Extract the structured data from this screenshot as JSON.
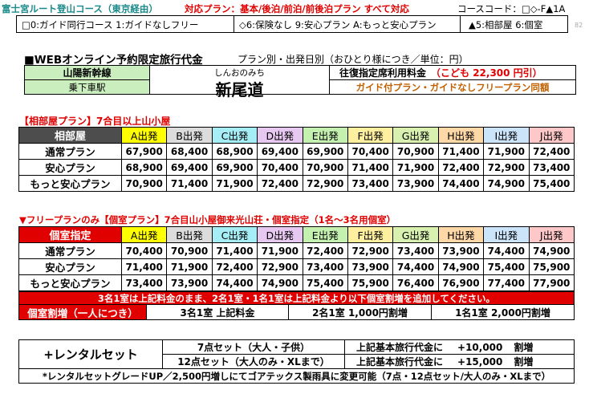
{
  "header": {
    "left_title": "富士宮ルート登山コース（東京経由）",
    "plan_notice": "対応プラン：基本/後泊/前泊/前後泊プラン すべて対応",
    "course_code": "コースコード：□◇-F▲1A",
    "page_num": "82"
  },
  "tags": {
    "guide": "□0:ガイド同行コース 1:ガイドなしフリー",
    "insurance": "◇6:保険なし 9:安心プラン A:もっと安心プラン",
    "room": "▲5:相部屋 6:個室"
  },
  "title": {
    "main": "■WEBオンライン予約限定旅行代金",
    "sub": "プラン別・出発日別（おひとり様につき／単位：円）"
  },
  "station": {
    "line": "山陽新幹線",
    "boarding_label": "乗下車駅",
    "reading": "しんおのみち",
    "name": "新尾道",
    "fare_label": "往復指定席利用料金",
    "fare_child": "（こども 22,300 円引）",
    "note": "ガイド付プラン・ガイドなしフリープラン同額"
  },
  "colors": {
    "A": "#ffff00",
    "B": "#dcdcdc",
    "C": "#a6eef6",
    "D": "#e6c8f0",
    "E": "#c4f0b0",
    "F": "#fff0a0",
    "G": "#d8f0b0",
    "H": "#ffd8a8",
    "I": "#cce4fa",
    "J": "#ffc8c8"
  },
  "dep_keys": [
    "A",
    "B",
    "C",
    "D",
    "E",
    "F",
    "G",
    "H",
    "I",
    "J"
  ],
  "departures": [
    "A出発",
    "B出発",
    "C出発",
    "D出発",
    "E出発",
    "F出発",
    "G出発",
    "H出発",
    "I出発",
    "J出発"
  ],
  "shared": {
    "title": "【相部屋プラン】7合目以上山小屋",
    "head": "相部屋",
    "rows": [
      {
        "label": "通常プラン",
        "values": [
          "67,900",
          "68,400",
          "68,900",
          "69,400",
          "69,900",
          "70,400",
          "70,900",
          "71,400",
          "71,900",
          "72,400"
        ]
      },
      {
        "label": "安心プラン",
        "values": [
          "68,900",
          "69,400",
          "69,900",
          "70,400",
          "70,900",
          "71,400",
          "71,900",
          "72,400",
          "72,900",
          "73,400"
        ]
      },
      {
        "label": "もっと安心プラン",
        "values": [
          "70,900",
          "71,400",
          "71,900",
          "72,400",
          "72,900",
          "73,400",
          "73,900",
          "74,400",
          "74,900",
          "75,400"
        ]
      }
    ]
  },
  "private": {
    "title": "▼フリープランのみ【個室プラン】7合目山小屋御来光山荘・個室指定（1名～3名用個室）",
    "head": "個室指定",
    "rows": [
      {
        "label": "通常プラン",
        "values": [
          "70,400",
          "70,900",
          "71,400",
          "71,900",
          "72,400",
          "72,900",
          "73,400",
          "73,900",
          "74,400",
          "74,900"
        ]
      },
      {
        "label": "安心プラン",
        "values": [
          "71,400",
          "71,900",
          "72,400",
          "72,900",
          "73,400",
          "73,900",
          "74,400",
          "74,900",
          "75,400",
          "75,900"
        ]
      },
      {
        "label": "もっと安心プラン",
        "values": [
          "73,400",
          "73,900",
          "74,400",
          "74,900",
          "75,400",
          "75,900",
          "76,400",
          "76,900",
          "77,400",
          "77,900"
        ]
      }
    ],
    "notice": "3名1室は上記料金のまま、2名1室・1名1室は上記料金より以下個室割増を追加してください。",
    "surcharge_label": "個室割増（一人につき）",
    "surcharge": [
      "3名1室 上記料金",
      "2名1室 1,000円割増",
      "1名1室 2,000円割増"
    ]
  },
  "rental": {
    "label": "+レンタルセット",
    "rows": [
      {
        "set": "7点セット（大人・子供）",
        "desc": "上記基本旅行代金に",
        "amount": "+10,000",
        "unit": "割増"
      },
      {
        "set": "12点セット（大人のみ・XLまで）",
        "desc": "上記基本旅行代金に",
        "amount": "+15,000",
        "unit": "割増"
      }
    ],
    "note": "*レンタルセットグレードUP／2,500円増しにてゴアテックス製雨具に変更可能（7点・12点セット/大人のみ・XLまで）"
  }
}
